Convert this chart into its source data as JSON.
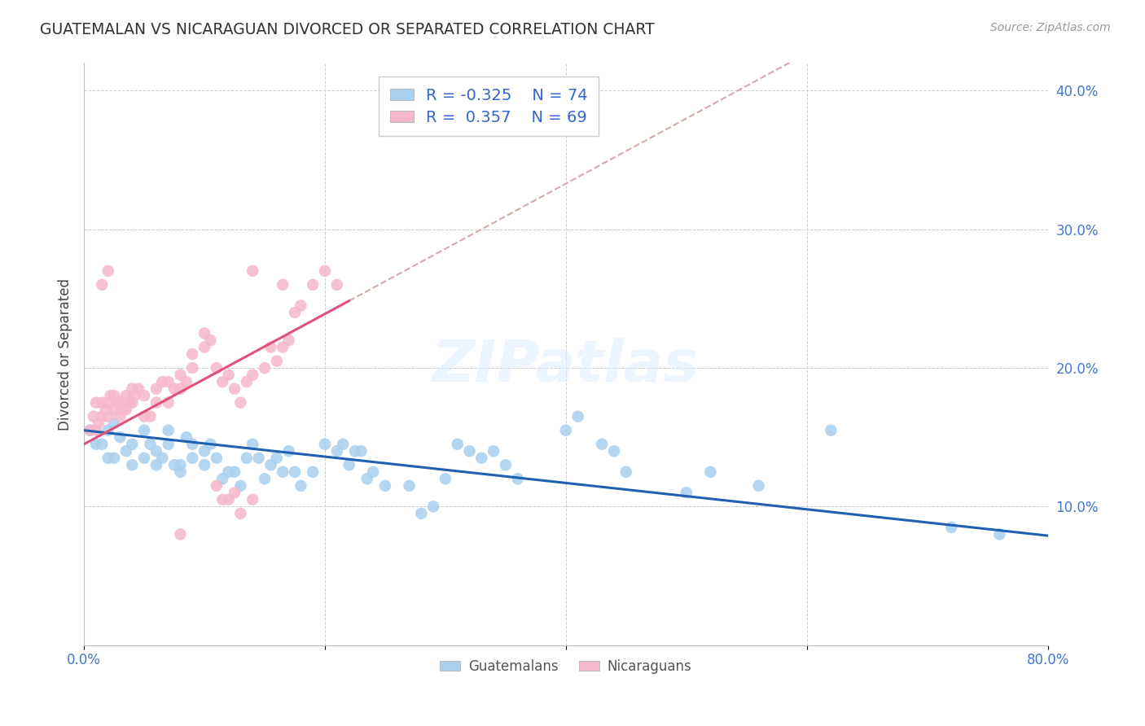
{
  "title": "GUATEMALAN VS NICARAGUAN DIVORCED OR SEPARATED CORRELATION CHART",
  "source": "Source: ZipAtlas.com",
  "ylabel": "Divorced or Separated",
  "xlim": [
    0.0,
    0.8
  ],
  "ylim": [
    0.0,
    0.42
  ],
  "xticks": [
    0.0,
    0.8
  ],
  "yticks": [
    0.1,
    0.2,
    0.3,
    0.4
  ],
  "blue_color": "#A8CFEE",
  "pink_color": "#F5B8CA",
  "blue_line_color": "#2060B0",
  "pink_line_color": "#E0507A",
  "dashed_line_color": "#D4AAAA",
  "legend_blue_text": "Guatemalans",
  "legend_pink_text": "Nicaraguans",
  "R_blue": -0.325,
  "N_blue": 74,
  "R_pink": 0.357,
  "N_pink": 69,
  "watermark_text": "ZIPatlas",
  "blue_intercept": 0.155,
  "blue_slope": -0.095,
  "pink_intercept": 0.145,
  "pink_slope": 0.47,
  "blue_scatter_x": [
    0.005,
    0.01,
    0.015,
    0.02,
    0.02,
    0.025,
    0.025,
    0.03,
    0.035,
    0.04,
    0.04,
    0.05,
    0.05,
    0.055,
    0.06,
    0.06,
    0.065,
    0.07,
    0.07,
    0.075,
    0.08,
    0.08,
    0.085,
    0.09,
    0.09,
    0.1,
    0.1,
    0.105,
    0.11,
    0.115,
    0.12,
    0.125,
    0.13,
    0.135,
    0.14,
    0.145,
    0.15,
    0.155,
    0.16,
    0.165,
    0.17,
    0.175,
    0.18,
    0.19,
    0.2,
    0.21,
    0.215,
    0.22,
    0.225,
    0.23,
    0.235,
    0.24,
    0.25,
    0.27,
    0.28,
    0.29,
    0.3,
    0.31,
    0.32,
    0.33,
    0.34,
    0.35,
    0.36,
    0.4,
    0.41,
    0.43,
    0.44,
    0.45,
    0.5,
    0.52,
    0.56,
    0.62,
    0.72,
    0.76
  ],
  "blue_scatter_y": [
    0.155,
    0.145,
    0.145,
    0.155,
    0.135,
    0.16,
    0.135,
    0.15,
    0.14,
    0.145,
    0.13,
    0.155,
    0.135,
    0.145,
    0.14,
    0.13,
    0.135,
    0.155,
    0.145,
    0.13,
    0.13,
    0.125,
    0.15,
    0.145,
    0.135,
    0.14,
    0.13,
    0.145,
    0.135,
    0.12,
    0.125,
    0.125,
    0.115,
    0.135,
    0.145,
    0.135,
    0.12,
    0.13,
    0.135,
    0.125,
    0.14,
    0.125,
    0.115,
    0.125,
    0.145,
    0.14,
    0.145,
    0.13,
    0.14,
    0.14,
    0.12,
    0.125,
    0.115,
    0.115,
    0.095,
    0.1,
    0.12,
    0.145,
    0.14,
    0.135,
    0.14,
    0.13,
    0.12,
    0.155,
    0.165,
    0.145,
    0.14,
    0.125,
    0.11,
    0.125,
    0.115,
    0.155,
    0.085,
    0.08
  ],
  "pink_scatter_x": [
    0.005,
    0.008,
    0.01,
    0.01,
    0.012,
    0.015,
    0.015,
    0.018,
    0.02,
    0.02,
    0.022,
    0.025,
    0.025,
    0.028,
    0.03,
    0.03,
    0.032,
    0.035,
    0.035,
    0.038,
    0.04,
    0.04,
    0.042,
    0.045,
    0.05,
    0.05,
    0.055,
    0.06,
    0.06,
    0.065,
    0.07,
    0.07,
    0.075,
    0.08,
    0.08,
    0.085,
    0.09,
    0.09,
    0.1,
    0.1,
    0.105,
    0.11,
    0.115,
    0.12,
    0.125,
    0.13,
    0.135,
    0.14,
    0.15,
    0.155,
    0.16,
    0.165,
    0.17,
    0.175,
    0.18,
    0.19,
    0.2,
    0.21,
    0.12,
    0.13,
    0.14,
    0.11,
    0.115,
    0.125,
    0.015,
    0.02,
    0.14,
    0.165,
    0.08
  ],
  "pink_scatter_y": [
    0.155,
    0.165,
    0.175,
    0.155,
    0.16,
    0.165,
    0.175,
    0.17,
    0.175,
    0.165,
    0.18,
    0.18,
    0.17,
    0.175,
    0.175,
    0.165,
    0.17,
    0.18,
    0.17,
    0.175,
    0.185,
    0.175,
    0.18,
    0.185,
    0.18,
    0.165,
    0.165,
    0.185,
    0.175,
    0.19,
    0.19,
    0.175,
    0.185,
    0.195,
    0.185,
    0.19,
    0.21,
    0.2,
    0.225,
    0.215,
    0.22,
    0.2,
    0.19,
    0.195,
    0.185,
    0.175,
    0.19,
    0.195,
    0.2,
    0.215,
    0.205,
    0.215,
    0.22,
    0.24,
    0.245,
    0.26,
    0.27,
    0.26,
    0.105,
    0.095,
    0.105,
    0.115,
    0.105,
    0.11,
    0.26,
    0.27,
    0.27,
    0.26,
    0.08
  ]
}
